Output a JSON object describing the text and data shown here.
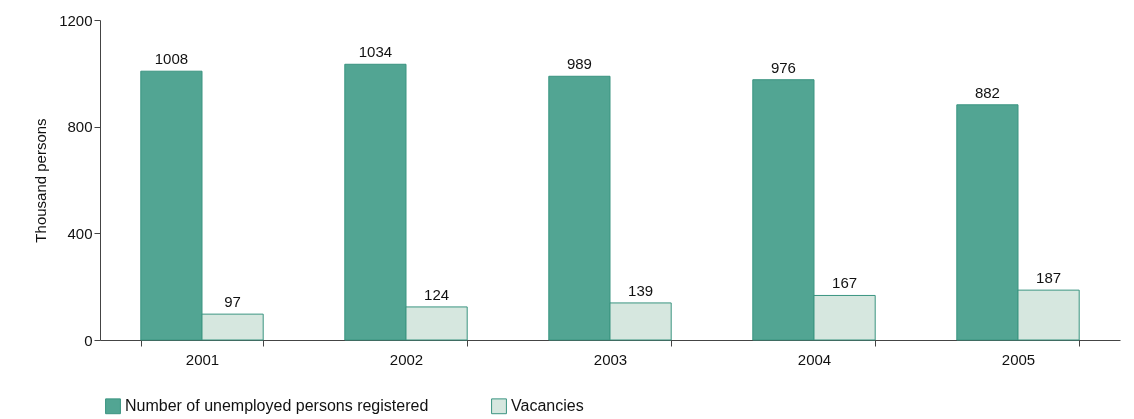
{
  "chart_data": {
    "type": "bar",
    "ylabel": "Thousand persons",
    "categories": [
      "2001",
      "2002",
      "2003",
      "2004",
      "2005"
    ],
    "series": [
      {
        "name": "Number of unemployed persons registered",
        "color": "#52a593",
        "values": [
          1008,
          1034,
          989,
          976,
          882
        ]
      },
      {
        "name": "Vacancies",
        "color": "#d6e7df",
        "values": [
          97,
          124,
          139,
          167,
          187
        ]
      }
    ],
    "ylim": [
      0,
      1200
    ],
    "yticks": [
      0,
      400,
      800,
      1200
    ],
    "grid": false,
    "legend": "bottom",
    "data_labels": true
  }
}
